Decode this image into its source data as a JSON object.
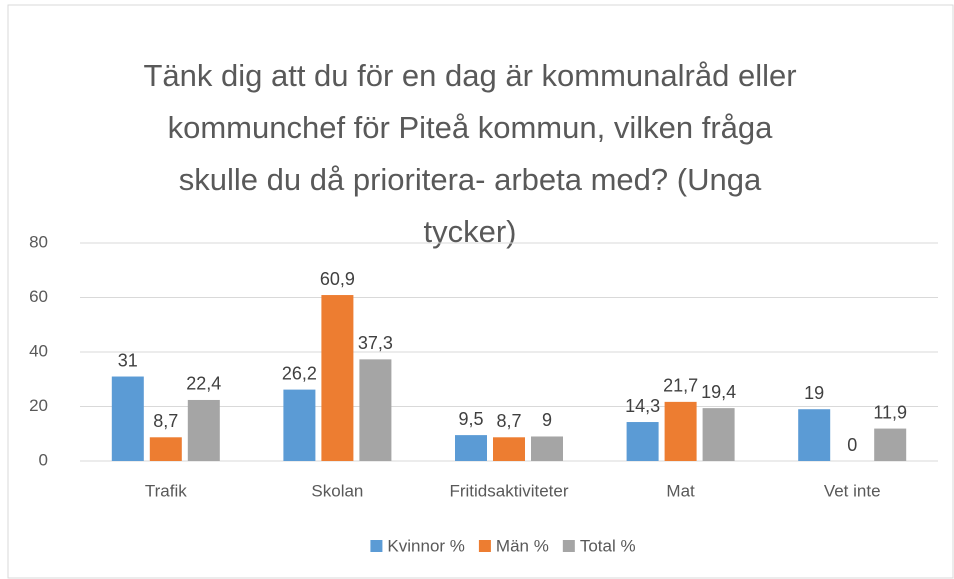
{
  "chart_data": {
    "type": "bar",
    "title": "Tänk dig att du för en dag är kommunalråd eller kommunchef för Piteå kommun, vilken fråga skulle du då prioritera- arbeta med? (Unga tycker)",
    "categories": [
      "Trafik",
      "Skolan",
      "Fritidsaktiviteter",
      "Mat",
      "Vet inte"
    ],
    "series": [
      {
        "name": "Kvinnor %",
        "color": "#5b9bd5",
        "values": [
          31,
          26.2,
          9.5,
          14.3,
          19
        ],
        "value_labels": [
          "31",
          "26,2",
          "9,5",
          "14,3",
          "19"
        ]
      },
      {
        "name": "Män %",
        "color": "#ed7d31",
        "values": [
          8.7,
          60.9,
          8.7,
          21.7,
          0
        ],
        "value_labels": [
          "8,7",
          "60,9",
          "8,7",
          "21,7",
          "0"
        ]
      },
      {
        "name": "Total %",
        "color": "#a5a5a5",
        "values": [
          22.4,
          37.3,
          9,
          19.4,
          11.9
        ],
        "value_labels": [
          "22,4",
          "37,3",
          "9",
          "19,4",
          "11,9"
        ]
      }
    ],
    "ylim": [
      0,
      80
    ],
    "yticks": [
      0,
      20,
      40,
      60,
      80
    ],
    "grid": true,
    "legend": "bottom"
  }
}
